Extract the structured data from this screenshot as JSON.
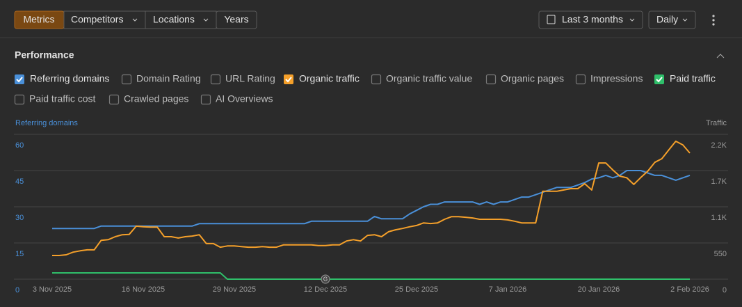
{
  "toolbar": {
    "tabs": [
      "Metrics",
      "Competitors",
      "Locations",
      "Years"
    ],
    "range": "Last 3 months",
    "interval": "Daily"
  },
  "section": {
    "title": "Performance",
    "unchecked": [
      "Domain Rating",
      "URL Rating",
      "Organic traffic value",
      "Organic pages",
      "Impressions",
      "Paid traffic cost",
      "Crawled pages",
      "AI Overviews"
    ]
  },
  "chart_data": {
    "type": "line",
    "ylabel": "Referring domains",
    "y2label": "Traffic",
    "annotation": "G",
    "grid": true,
    "categories": [
      "3 Nov 2025",
      null,
      null,
      null,
      null,
      null,
      null,
      null,
      null,
      null,
      null,
      null,
      null,
      "16 Nov 2025",
      null,
      null,
      null,
      null,
      null,
      null,
      null,
      null,
      null,
      null,
      null,
      null,
      "29 Nov 2025",
      null,
      null,
      null,
      null,
      null,
      null,
      null,
      null,
      null,
      null,
      null,
      null,
      "12 Dec 2025",
      null,
      null,
      null,
      null,
      null,
      null,
      null,
      null,
      null,
      null,
      null,
      null,
      "25 Dec 2025",
      null,
      null,
      null,
      null,
      null,
      null,
      null,
      null,
      null,
      null,
      null,
      null,
      "7 Jan 2026",
      null,
      null,
      null,
      null,
      null,
      null,
      null,
      null,
      null,
      null,
      null,
      null,
      "20 Jan 2026",
      null,
      null,
      null,
      null,
      null,
      null,
      null,
      null,
      null,
      null,
      null,
      null,
      "2 Feb 2026"
    ],
    "ylim": [
      0,
      60
    ],
    "yticks": [
      0,
      15,
      30,
      45,
      60
    ],
    "y2lim": [
      0,
      2200
    ],
    "y2ticks": [
      0,
      550,
      {
        "value": 1100,
        "label": "1.1K"
      },
      {
        "value": 1650,
        "label": "1.7K"
      },
      {
        "value": 2200,
        "label": "2.2K"
      }
    ],
    "series": [
      {
        "name": "Referring domains",
        "color": "#4a90d9",
        "values": [
          21,
          21,
          21,
          21,
          21,
          21,
          21,
          22,
          22,
          22,
          22,
          22,
          22,
          22,
          22,
          22,
          22,
          22,
          22,
          22,
          22,
          23,
          23,
          23,
          23,
          23,
          23,
          23,
          23,
          23,
          23,
          23,
          23,
          23,
          23,
          23,
          23,
          24,
          24,
          24,
          24,
          24,
          24,
          24,
          24,
          24,
          26,
          25,
          25,
          25,
          25,
          27,
          28.5,
          30,
          31,
          31,
          32,
          32,
          32,
          32,
          32,
          31,
          32,
          31,
          32,
          32,
          33,
          34,
          34,
          35,
          36,
          37,
          38,
          38,
          38,
          39,
          40,
          41.5,
          42,
          43,
          42,
          43,
          45,
          45,
          45,
          44,
          43,
          43,
          42,
          41,
          42,
          43
        ]
      },
      {
        "name": "Organic traffic",
        "color": "#f5a02a",
        "axis": "y2",
        "values": [
          360,
          360,
          370,
          410,
          430,
          445,
          445,
          590,
          600,
          645,
          675,
          680,
          805,
          795,
          790,
          790,
          645,
          645,
          625,
          645,
          655,
          675,
          540,
          540,
          485,
          505,
          505,
          495,
          485,
          485,
          495,
          485,
          485,
          520,
          520,
          520,
          520,
          520,
          510,
          510,
          520,
          520,
          580,
          600,
          580,
          665,
          675,
          645,
          720,
          750,
          770,
          795,
          815,
          855,
          845,
          855,
          910,
          950,
          950,
          940,
          930,
          910,
          910,
          910,
          910,
          900,
          880,
          855,
          855,
          855,
          1335,
          1335,
          1335,
          1355,
          1375,
          1375,
          1450,
          1355,
          1765,
          1765,
          1660,
          1565,
          1540,
          1440,
          1545,
          1640,
          1775,
          1830,
          1965,
          2095,
          2040,
          1915
        ]
      },
      {
        "name": "Paid traffic",
        "color": "#2fbf6a",
        "axis": "y2",
        "values": [
          95,
          95,
          95,
          95,
          95,
          95,
          95,
          95,
          95,
          95,
          95,
          95,
          95,
          95,
          95,
          95,
          95,
          95,
          95,
          95,
          95,
          95,
          95,
          95,
          95,
          0,
          0,
          0,
          0,
          0,
          0,
          0,
          0,
          0,
          0,
          0,
          0,
          0,
          0,
          0,
          0,
          0,
          0,
          0,
          0,
          0,
          0,
          0,
          0,
          0,
          0,
          0,
          0,
          0,
          0,
          0,
          0,
          0,
          0,
          0,
          0,
          0,
          0,
          0,
          0,
          0,
          0,
          0,
          0,
          0,
          0,
          0,
          0,
          0,
          0,
          0,
          0,
          0,
          0,
          0,
          0,
          0,
          0,
          0,
          0,
          0,
          0,
          0,
          0,
          0,
          0,
          0
        ]
      }
    ]
  }
}
